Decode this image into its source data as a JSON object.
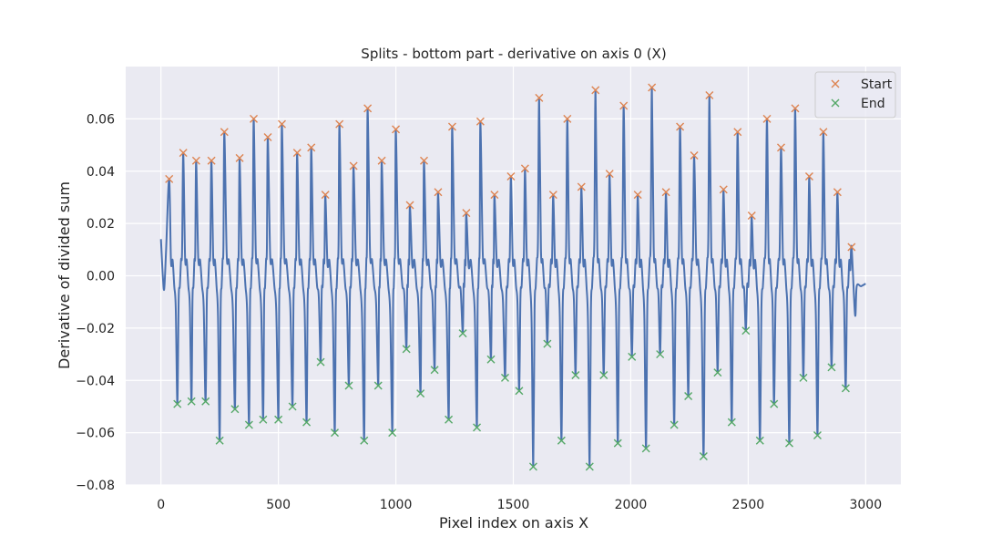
{
  "chart_data": {
    "type": "line",
    "title": "Splits - bottom part - derivative on axis 0 (X)",
    "xlabel": "Pixel index on axis X",
    "ylabel": "Derivative of divided sum",
    "xlim": [
      -150,
      3150
    ],
    "ylim": [
      -0.08,
      0.08
    ],
    "xticks": [
      0,
      500,
      1000,
      1500,
      2000,
      2500,
      3000
    ],
    "yticks": [
      -0.08,
      -0.06,
      -0.04,
      -0.02,
      0.0,
      0.02,
      0.04,
      0.06
    ],
    "ytick_labels": [
      "−0.08",
      "−0.06",
      "−0.04",
      "−0.02",
      "0.00",
      "0.02",
      "0.04",
      "0.06"
    ],
    "grid": true,
    "legend": "top-right",
    "colors": {
      "background": "#eaeaf2",
      "grid": "#ffffff",
      "line": "#4c72b0",
      "start": "#dd8452",
      "end": "#55a868"
    },
    "series": [
      {
        "name": "Start",
        "marker": "x",
        "x": [
          35,
          95,
          150,
          215,
          270,
          335,
          395,
          455,
          515,
          580,
          640,
          700,
          760,
          820,
          880,
          940,
          1000,
          1060,
          1120,
          1180,
          1240,
          1300,
          1360,
          1420,
          1490,
          1550,
          1610,
          1670,
          1730,
          1790,
          1850,
          1910,
          1970,
          2030,
          2090,
          2150,
          2210,
          2270,
          2335,
          2395,
          2455,
          2515,
          2580,
          2640,
          2700,
          2760,
          2820,
          2880,
          2940
        ],
        "y": [
          0.037,
          0.047,
          0.044,
          0.044,
          0.055,
          0.045,
          0.06,
          0.053,
          0.058,
          0.047,
          0.049,
          0.031,
          0.058,
          0.042,
          0.064,
          0.044,
          0.056,
          0.027,
          0.044,
          0.032,
          0.057,
          0.024,
          0.059,
          0.031,
          0.038,
          0.041,
          0.068,
          0.031,
          0.06,
          0.034,
          0.071,
          0.039,
          0.065,
          0.031,
          0.072,
          0.032,
          0.057,
          0.046,
          0.069,
          0.033,
          0.055,
          0.023,
          0.06,
          0.049,
          0.064,
          0.038,
          0.055,
          0.032,
          0.011
        ]
      },
      {
        "name": "End",
        "marker": "x",
        "x": [
          70,
          130,
          190,
          250,
          315,
          375,
          435,
          500,
          560,
          620,
          680,
          740,
          800,
          865,
          925,
          985,
          1045,
          1105,
          1165,
          1225,
          1285,
          1345,
          1405,
          1465,
          1525,
          1585,
          1645,
          1705,
          1765,
          1825,
          1885,
          1945,
          2005,
          2065,
          2125,
          2185,
          2245,
          2310,
          2370,
          2430,
          2490,
          2550,
          2610,
          2675,
          2735,
          2795,
          2855,
          2915
        ],
        "y": [
          -0.049,
          -0.048,
          -0.048,
          -0.063,
          -0.051,
          -0.057,
          -0.055,
          -0.055,
          -0.05,
          -0.056,
          -0.033,
          -0.06,
          -0.042,
          -0.063,
          -0.042,
          -0.06,
          -0.028,
          -0.045,
          -0.036,
          -0.055,
          -0.022,
          -0.058,
          -0.032,
          -0.039,
          -0.044,
          -0.073,
          -0.026,
          -0.063,
          -0.038,
          -0.073,
          -0.038,
          -0.064,
          -0.031,
          -0.066,
          -0.03,
          -0.057,
          -0.046,
          -0.069,
          -0.037,
          -0.056,
          -0.021,
          -0.063,
          -0.049,
          -0.064,
          -0.039,
          -0.061,
          -0.035,
          -0.043
        ]
      }
    ]
  }
}
